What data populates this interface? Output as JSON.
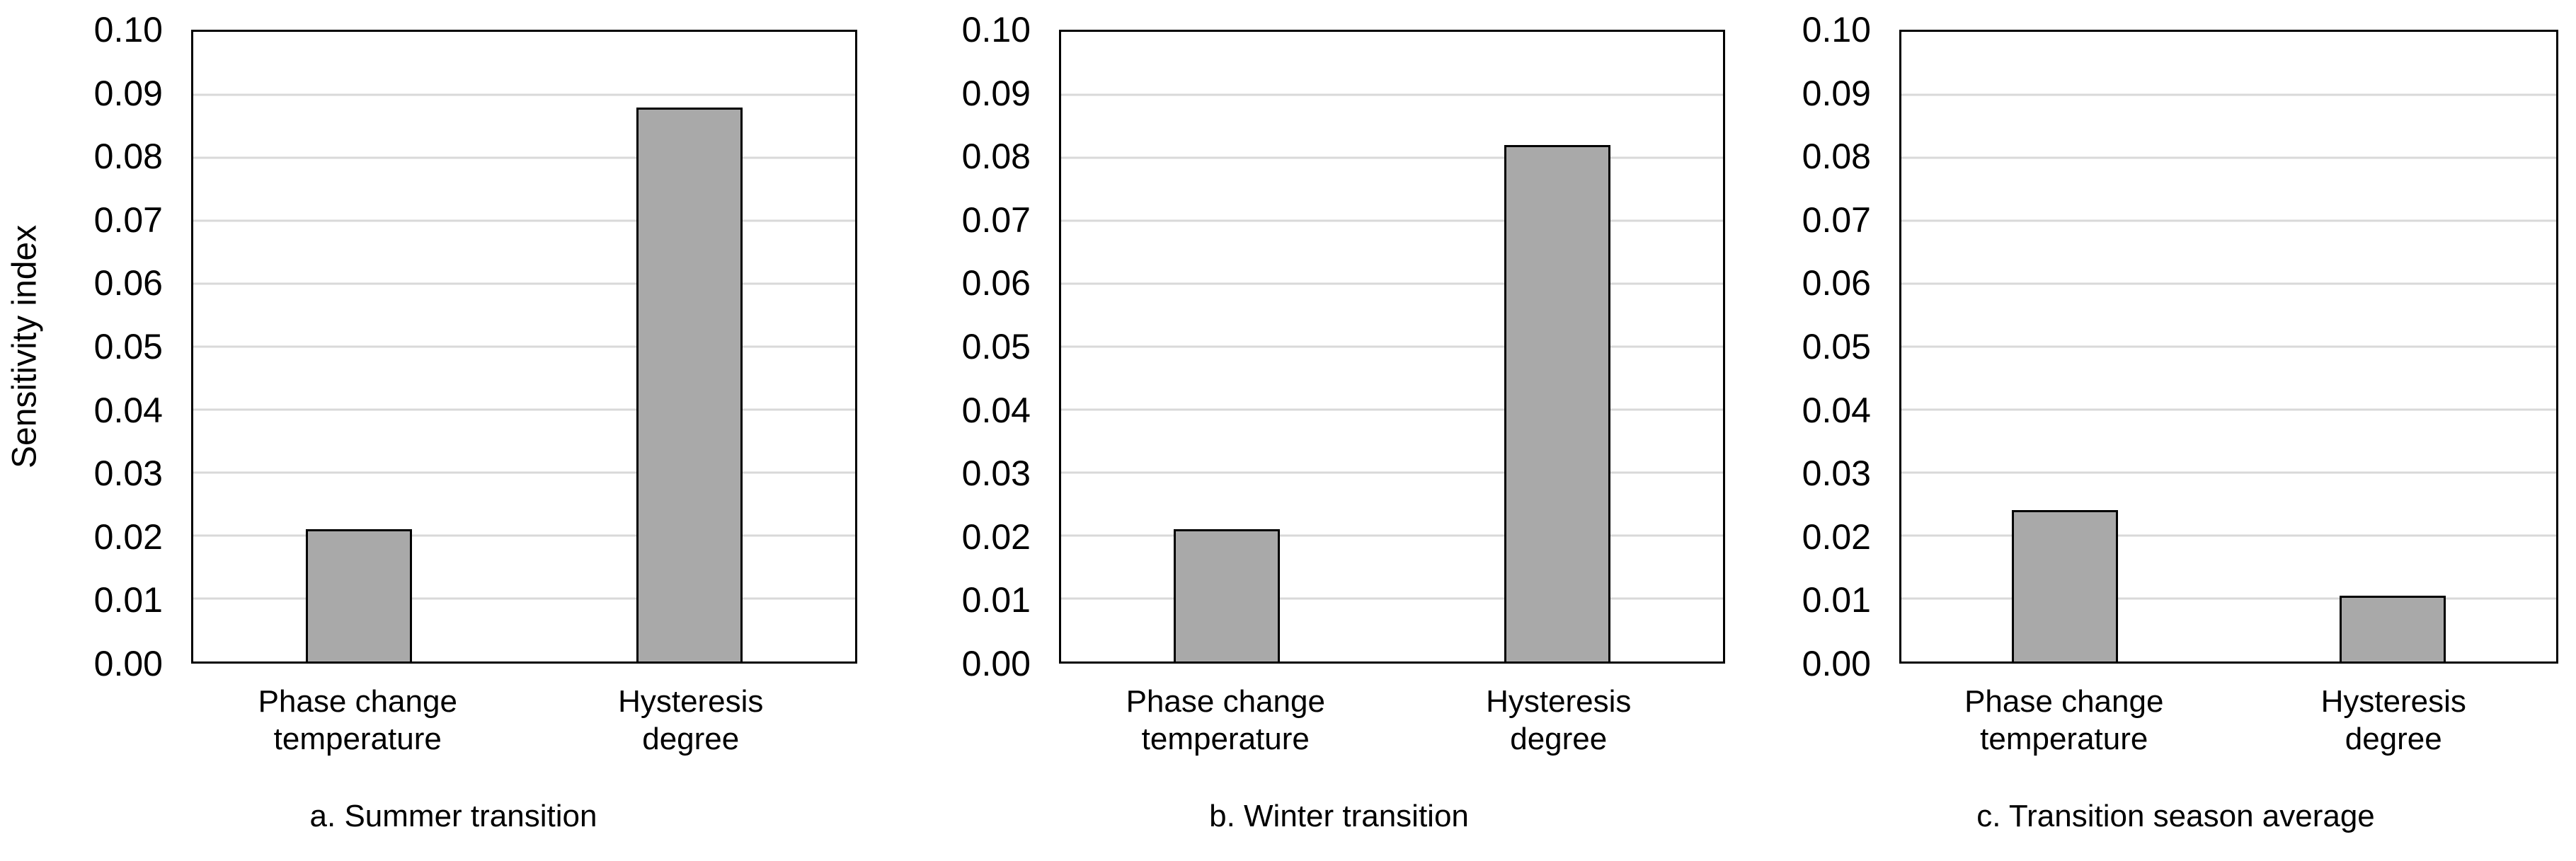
{
  "figure": {
    "y_axis_label": "Sensitivity index",
    "colors": {
      "bar_fill": "#a9a9a9",
      "bar_border": "#000000",
      "gridline": "#d9d9d9",
      "plot_border": "#000000",
      "text": "#000000",
      "background": "#ffffff"
    }
  },
  "chart_data": [
    {
      "type": "bar",
      "caption": "a. Summer transition",
      "categories": [
        "Phase change\ntemperature",
        "Hysteresis\ndegree"
      ],
      "values": [
        0.021,
        0.088
      ],
      "ylabel": "Sensitivity index",
      "xlabel": "",
      "ylim": [
        0,
        0.1
      ],
      "y_ticks": [
        "0.00",
        "0.01",
        "0.02",
        "0.03",
        "0.04",
        "0.05",
        "0.06",
        "0.07",
        "0.08",
        "0.09",
        "0.10"
      ],
      "grid": true,
      "legend_position": "none"
    },
    {
      "type": "bar",
      "caption": "b. Winter transition",
      "categories": [
        "Phase change\ntemperature",
        "Hysteresis\ndegree"
      ],
      "values": [
        0.021,
        0.082
      ],
      "ylabel": "",
      "xlabel": "",
      "ylim": [
        0,
        0.1
      ],
      "y_ticks": [
        "0.00",
        "0.01",
        "0.02",
        "0.03",
        "0.04",
        "0.05",
        "0.06",
        "0.07",
        "0.08",
        "0.09",
        "0.10"
      ],
      "grid": true,
      "legend_position": "none"
    },
    {
      "type": "bar",
      "caption": "c. Transition season average",
      "categories": [
        "Phase change\ntemperature",
        "Hysteresis\ndegree"
      ],
      "values": [
        0.024,
        0.0105
      ],
      "ylabel": "",
      "xlabel": "",
      "ylim": [
        0,
        0.1
      ],
      "y_ticks": [
        "0.00",
        "0.01",
        "0.02",
        "0.03",
        "0.04",
        "0.05",
        "0.06",
        "0.07",
        "0.08",
        "0.09",
        "0.10"
      ],
      "grid": true,
      "legend_position": "none"
    }
  ]
}
